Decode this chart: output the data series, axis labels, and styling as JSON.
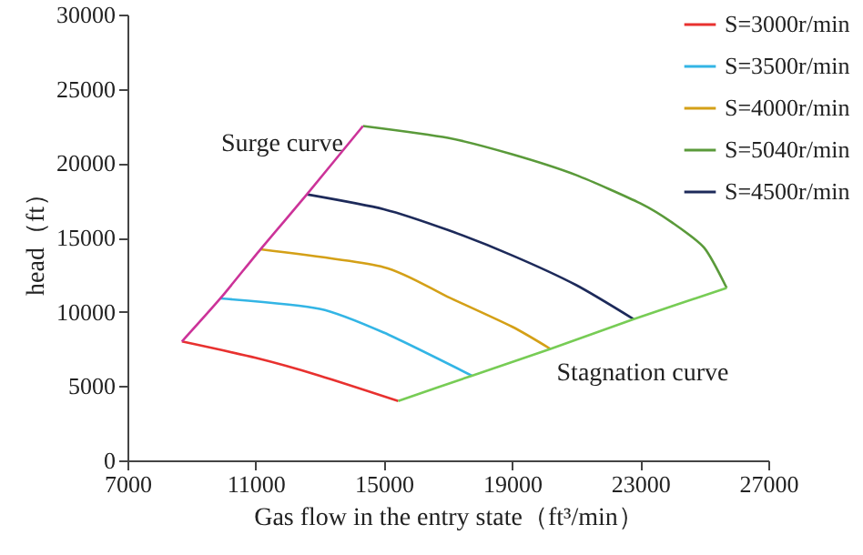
{
  "chart_data": {
    "type": "line",
    "xlabel": "Gas flow in the entry state（ft³/min）",
    "ylabel": "head（ft）",
    "xlim": [
      7000,
      27000
    ],
    "xticks": [
      7000,
      11000,
      15000,
      19000,
      23000,
      27000
    ],
    "ylim": [
      0,
      30000
    ],
    "yticks": [
      0,
      5000,
      10000,
      15000,
      20000,
      25000,
      30000
    ],
    "grid": false,
    "legend": "top right",
    "marker": "none",
    "line_style": "solid",
    "series": [
      {
        "name": "S=3000r/min",
        "color": "#e8312f",
        "x": [
          8700,
          11000,
          13000,
          15450
        ],
        "values": [
          8000,
          6900,
          5700,
          4000
        ]
      },
      {
        "name": "S=3500r/min",
        "color": "#33b5e5",
        "x": [
          9900,
          13000,
          15000,
          17750
        ],
        "values": [
          10900,
          10200,
          8600,
          5700
        ]
      },
      {
        "name": "S=4000r/min",
        "color": "#d4a017",
        "x": [
          11150,
          15000,
          17000,
          19000,
          20200
        ],
        "values": [
          14200,
          13000,
          11000,
          9000,
          7500
        ]
      },
      {
        "name": "S=5040r/min",
        "color": "#5a9a3a",
        "x": [
          14350,
          17000,
          19000,
          21000,
          23000,
          24000,
          25000,
          25700
        ],
        "values": [
          22500,
          21700,
          20600,
          19200,
          17300,
          16000,
          14300,
          11600
        ]
      },
      {
        "name": "S=4500r/min",
        "color": "#1d2a5a",
        "x": [
          12600,
          15000,
          17000,
          19000,
          21000,
          22800
        ],
        "values": [
          17900,
          16900,
          15500,
          13800,
          11800,
          9500
        ]
      },
      {
        "color": "#cc3399",
        "x": [
          8700,
          9900,
          11150,
          12600,
          14350
        ],
        "values": [
          8000,
          10900,
          14200,
          17900,
          22500
        ]
      },
      {
        "color": "#77cc55",
        "x": [
          15450,
          17750,
          20200,
          22800,
          25700
        ],
        "values": [
          4000,
          5700,
          7500,
          9500,
          11600
        ]
      }
    ],
    "annotations": [
      "Surge curve",
      "Stagnation curve"
    ]
  }
}
